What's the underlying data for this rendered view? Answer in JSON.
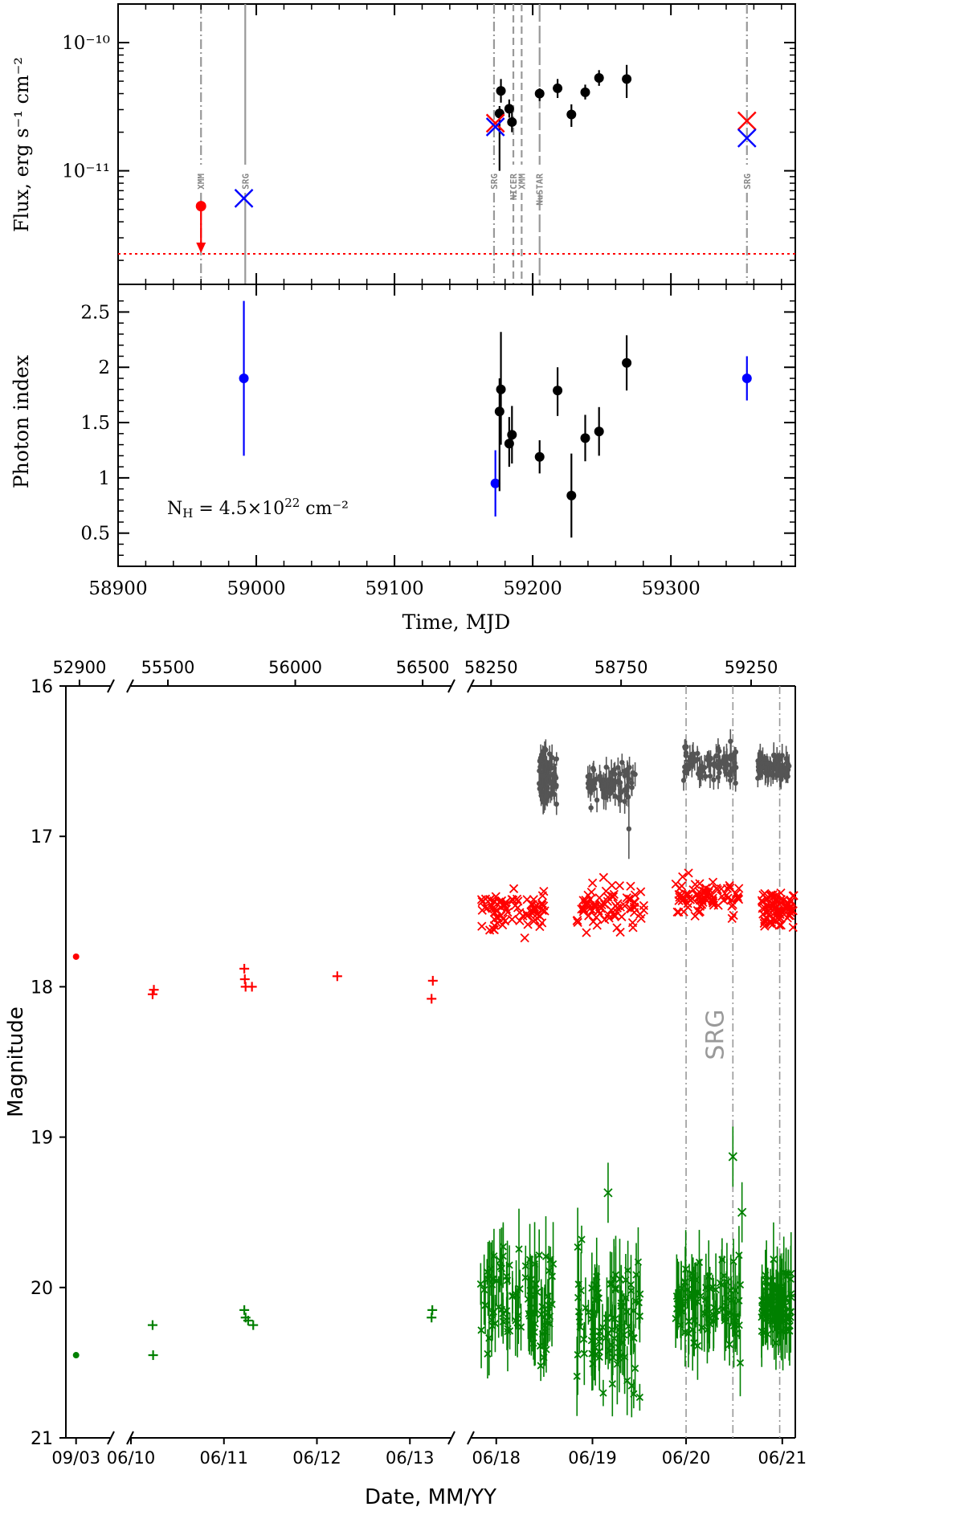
{
  "chart_data": [
    {
      "type": "scatter",
      "panel": "flux",
      "ylabel": "Flux, erg s⁻¹ cm⁻²",
      "y_scale": "log",
      "xlim": [
        58900,
        59390
      ],
      "ylim": [
        1.3e-12,
        2e-10
      ],
      "y_ticks": [
        {
          "value": 1e-11,
          "label": "10⁻¹¹"
        },
        {
          "value": 1e-10,
          "label": "10⁻¹⁰"
        }
      ],
      "colors": {
        "xmm": "#ff0000",
        "srg": "#0000ff",
        "red_cross": "#ff0000",
        "black": "#000000",
        "limit_line": "#ff0000",
        "obs_line": "#999999"
      },
      "observation_lines": [
        {
          "label": "XMM",
          "x": 58960,
          "style": "dashdot"
        },
        {
          "label": "SRG",
          "x": 58992,
          "style": "solid"
        },
        {
          "label": "SRG",
          "x": 59172,
          "style": "dashdot"
        },
        {
          "label": "NICER",
          "x": 59186,
          "style": "dashed"
        },
        {
          "label": "XMM",
          "x": 59192,
          "style": "dashed"
        },
        {
          "label": "NuSTAR",
          "x": 59205,
          "style": "longdash"
        },
        {
          "label": "SRG",
          "x": 59355,
          "style": "dashdot"
        }
      ],
      "xmm_upper_limit": {
        "x": 58960,
        "y": 5.3e-12
      },
      "limit_line_y": 2.25e-12,
      "srg_blue": [
        {
          "x": 58991,
          "y": 6.1e-12
        },
        {
          "x": 59173,
          "y": 2.2e-11
        },
        {
          "x": 59355,
          "y": 1.8e-11
        }
      ],
      "red_crosses": [
        {
          "x": 59173,
          "y": 2.35e-11
        },
        {
          "x": 59355,
          "y": 2.45e-11
        }
      ],
      "black_points": [
        {
          "x": 59176,
          "y": 2.8e-11,
          "ylo": 1e-11,
          "yhi": 3.2e-11
        },
        {
          "x": 59177,
          "y": 4.2e-11,
          "ylo": 3.4e-11,
          "yhi": 5.2e-11
        },
        {
          "x": 59183,
          "y": 3.05e-11,
          "ylo": 2.6e-11,
          "yhi": 3.6e-11
        },
        {
          "x": 59185,
          "y": 2.4e-11,
          "ylo": 2e-11,
          "yhi": 2.9e-11
        },
        {
          "x": 59205,
          "y": 4e-11,
          "ylo": 3.5e-11,
          "yhi": 4.4e-11
        },
        {
          "x": 59218,
          "y": 4.4e-11,
          "ylo": 3.7e-11,
          "yhi": 5.2e-11
        },
        {
          "x": 59228,
          "y": 2.75e-11,
          "ylo": 2.2e-11,
          "yhi": 3.3e-11
        },
        {
          "x": 59238,
          "y": 4.1e-11,
          "ylo": 3.6e-11,
          "yhi": 4.7e-11
        },
        {
          "x": 59248,
          "y": 5.3e-11,
          "ylo": 4.6e-11,
          "yhi": 6.1e-11
        },
        {
          "x": 59268,
          "y": 5.2e-11,
          "ylo": 3.7e-11,
          "yhi": 6.7e-11
        }
      ]
    },
    {
      "type": "scatter",
      "panel": "photon_index",
      "xlabel": "Time, MJD",
      "ylabel": "Photon index",
      "xlim": [
        58900,
        59390
      ],
      "ylim": [
        0.2,
        2.75
      ],
      "x_ticks": [
        58900,
        59000,
        59100,
        59200,
        59300
      ],
      "y_ticks": [
        0.5,
        1,
        1.5,
        2,
        2.5
      ],
      "annotation": "N_H = 4.5×10²² cm⁻²",
      "annotation_main": "N",
      "annotation_sub": "H",
      "annotation_mid": " = 4.5×10",
      "annotation_sup": "22",
      "annotation_end": " cm⁻²",
      "blue_points": [
        {
          "x": 58991,
          "y": 1.9,
          "ylo": 1.2,
          "yhi": 2.6
        },
        {
          "x": 59173,
          "y": 0.95,
          "ylo": 0.65,
          "yhi": 1.25
        },
        {
          "x": 59355,
          "y": 1.9,
          "ylo": 1.7,
          "yhi": 2.1
        }
      ],
      "black_points": [
        {
          "x": 59176,
          "y": 1.6,
          "ylo": 0.88,
          "yhi": 1.9
        },
        {
          "x": 59177,
          "y": 1.8,
          "ylo": 1.3,
          "yhi": 2.32
        },
        {
          "x": 59183,
          "y": 1.31,
          "ylo": 1.1,
          "yhi": 1.55
        },
        {
          "x": 59185,
          "y": 1.39,
          "ylo": 1.13,
          "yhi": 1.65
        },
        {
          "x": 59205,
          "y": 1.19,
          "ylo": 1.04,
          "yhi": 1.34
        },
        {
          "x": 59218,
          "y": 1.79,
          "ylo": 1.56,
          "yhi": 2.0
        },
        {
          "x": 59228,
          "y": 0.84,
          "ylo": 0.46,
          "yhi": 1.22
        },
        {
          "x": 59238,
          "y": 1.36,
          "ylo": 1.15,
          "yhi": 1.57
        },
        {
          "x": 59248,
          "y": 1.42,
          "ylo": 1.2,
          "yhi": 1.64
        },
        {
          "x": 59268,
          "y": 2.04,
          "ylo": 1.79,
          "yhi": 2.29
        }
      ]
    },
    {
      "type": "scatter",
      "panel": "optical_lightcurve",
      "xlabel": "Date, MM/YY",
      "ylabel": "Magnitude",
      "ylim": [
        21,
        16
      ],
      "y_ticks": [
        16,
        17,
        18,
        19,
        20,
        21
      ],
      "annotation": "SRG",
      "colors": {
        "r": "#ff0000",
        "g": "#008000",
        "gray": "#555555",
        "srg_line": "#999999"
      },
      "segments": [
        {
          "xlim": [
            52860,
            52990
          ],
          "top_ticks": [
            52900
          ],
          "date_ticks": [
            {
              "x": 52890,
              "label": "09/03"
            }
          ]
        },
        {
          "xlim": [
            55355,
            56610
          ],
          "top_ticks": [
            55500,
            56000,
            56500
          ],
          "date_ticks": [
            {
              "x": 55355,
              "label": "06/10"
            },
            {
              "x": 55720,
              "label": "06/11"
            },
            {
              "x": 56085,
              "label": "06/12"
            },
            {
              "x": 56450,
              "label": "06/13"
            }
          ]
        },
        {
          "xlim": [
            58175,
            59420
          ],
          "top_ticks": [
            58250,
            58750,
            59250
          ],
          "date_ticks": [
            {
              "x": 58270,
              "label": "06/18"
            },
            {
              "x": 58640,
              "label": "06/19"
            },
            {
              "x": 59000,
              "label": "06/20"
            },
            {
              "x": 59370,
              "label": "06/21"
            }
          ]
        }
      ],
      "srg_lines": [
        59000,
        59180,
        59360
      ],
      "sparse_points": [
        {
          "x": 52890,
          "y": 17.8,
          "band": "r",
          "marker": "dot"
        },
        {
          "x": 52890,
          "y": 20.45,
          "band": "g",
          "marker": "dot"
        },
        {
          "x": 55440,
          "y": 18.05,
          "band": "r",
          "marker": "plus"
        },
        {
          "x": 55445,
          "y": 18.02,
          "band": "r",
          "marker": "plus"
        },
        {
          "x": 55440,
          "y": 20.25,
          "band": "g",
          "marker": "plus"
        },
        {
          "x": 55442,
          "y": 20.45,
          "band": "g",
          "marker": "plus"
        },
        {
          "x": 55800,
          "y": 17.88,
          "band": "r",
          "marker": "plus"
        },
        {
          "x": 55802,
          "y": 17.95,
          "band": "r",
          "marker": "plus"
        },
        {
          "x": 55805,
          "y": 18.0,
          "band": "r",
          "marker": "plus"
        },
        {
          "x": 55830,
          "y": 18.0,
          "band": "r",
          "marker": "plus"
        },
        {
          "x": 55800,
          "y": 20.15,
          "band": "g",
          "marker": "plus"
        },
        {
          "x": 55805,
          "y": 20.2,
          "band": "g",
          "marker": "plus"
        },
        {
          "x": 55815,
          "y": 20.22,
          "band": "g",
          "marker": "plus"
        },
        {
          "x": 55835,
          "y": 20.25,
          "band": "g",
          "marker": "plus"
        },
        {
          "x": 56165,
          "y": 17.93,
          "band": "r",
          "marker": "plus"
        },
        {
          "x": 56535,
          "y": 18.08,
          "band": "r",
          "marker": "plus"
        },
        {
          "x": 56540,
          "y": 17.96,
          "band": "r",
          "marker": "plus"
        },
        {
          "x": 56535,
          "y": 20.2,
          "band": "g",
          "marker": "plus"
        },
        {
          "x": 56538,
          "y": 20.15,
          "band": "g",
          "marker": "plus"
        }
      ],
      "dense_bands": [
        {
          "band": "gray",
          "xrange": [
            58435,
            58505
          ],
          "ymean": 16.62,
          "scatter": 0.08
        },
        {
          "band": "gray",
          "xrange": [
            58615,
            58805
          ],
          "ymean": 16.66,
          "scatter": 0.07
        },
        {
          "band": "gray",
          "xrange": [
            58990,
            59195
          ],
          "ymean": 16.52,
          "scatter": 0.06
        },
        {
          "band": "gray",
          "xrange": [
            59275,
            59400
          ],
          "ymean": 16.53,
          "scatter": 0.05
        },
        {
          "band": "r",
          "xrange": [
            58200,
            58460
          ],
          "ymean": 17.5,
          "scatter": 0.07
        },
        {
          "band": "r",
          "xrange": [
            58580,
            58840
          ],
          "ymean": 17.47,
          "scatter": 0.08
        },
        {
          "band": "r",
          "xrange": [
            58960,
            59205
          ],
          "ymean": 17.4,
          "scatter": 0.06
        },
        {
          "band": "r",
          "xrange": [
            59290,
            59415
          ],
          "ymean": 17.5,
          "scatter": 0.06
        },
        {
          "band": "g",
          "xrange": [
            58210,
            58490
          ],
          "ymean": 20.1,
          "scatter": 0.18
        },
        {
          "band": "g",
          "xrange": [
            58580,
            58830
          ],
          "ymean": 20.15,
          "scatter": 0.22
        },
        {
          "band": "g",
          "xrange": [
            58960,
            59210
          ],
          "ymean": 20.12,
          "scatter": 0.15
        },
        {
          "band": "g",
          "xrange": [
            59290,
            59405
          ],
          "ymean": 20.15,
          "scatter": 0.12
        }
      ],
      "outliers": [
        {
          "x": 59180,
          "y": 19.13,
          "band": "g"
        },
        {
          "x": 59215,
          "y": 19.5,
          "band": "g"
        },
        {
          "x": 58700,
          "y": 19.37,
          "band": "g"
        },
        {
          "x": 58780,
          "y": 16.95,
          "band": "gray"
        }
      ]
    }
  ]
}
